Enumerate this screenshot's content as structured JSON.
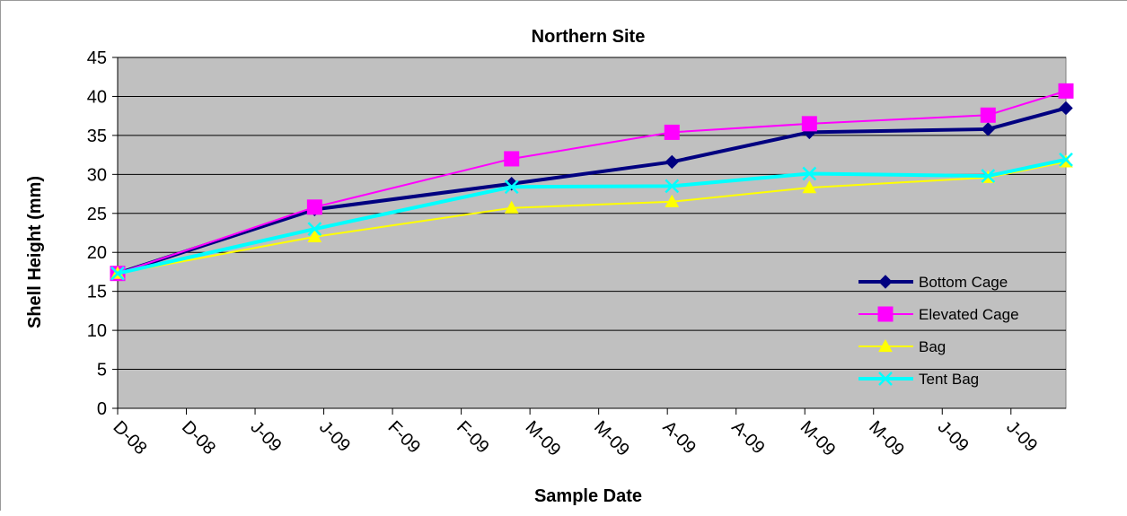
{
  "chart_data": {
    "type": "line",
    "title": "Northern Site",
    "xlabel": "Sample Date",
    "ylabel": "Shell Height (mm)",
    "ylim": [
      0,
      45
    ],
    "yticks": [
      0,
      5,
      10,
      15,
      20,
      25,
      30,
      35,
      40,
      45
    ],
    "grid": true,
    "legend_position": "lower-right",
    "plot_background": "#c0c0c0",
    "x_tick_labels": [
      "D-08",
      "D-08",
      "J-09",
      "J-09",
      "F-09",
      "F-09",
      "M-09",
      "M-09",
      "A-09",
      "A-09",
      "M-09",
      "M-09",
      "J-09",
      "J-09"
    ],
    "x_tick_dates": [
      "2008-12-01",
      "2008-12-16",
      "2008-12-31",
      "2009-01-15",
      "2009-01-30",
      "2009-02-14",
      "2009-03-01",
      "2009-03-16",
      "2009-03-31",
      "2009-04-15",
      "2009-04-30",
      "2009-05-15",
      "2009-05-30",
      "2009-06-14"
    ],
    "x_range": [
      "2008-12-01",
      "2009-06-26"
    ],
    "x": [
      "2008-12-01",
      "2009-01-13",
      "2009-02-25",
      "2009-04-01",
      "2009-05-01",
      "2009-06-09",
      "2009-06-26"
    ],
    "series": [
      {
        "name": "Bottom Cage",
        "color": "#000080",
        "marker": "diamond",
        "values": [
          17.3,
          25.5,
          28.8,
          31.6,
          35.4,
          35.8,
          38.5
        ]
      },
      {
        "name": "Elevated Cage",
        "color": "#ff00ff",
        "marker": "square",
        "values": [
          17.3,
          25.8,
          32.0,
          35.4,
          36.5,
          37.6,
          40.7
        ]
      },
      {
        "name": "Bag",
        "color": "#ffff00",
        "marker": "triangle",
        "values": [
          17.3,
          22.0,
          25.7,
          26.5,
          28.3,
          29.6,
          31.6
        ]
      },
      {
        "name": "Tent Bag",
        "color": "#00ffff",
        "marker": "x",
        "values": [
          17.3,
          23.0,
          28.4,
          28.5,
          30.1,
          29.8,
          31.9
        ]
      }
    ]
  }
}
